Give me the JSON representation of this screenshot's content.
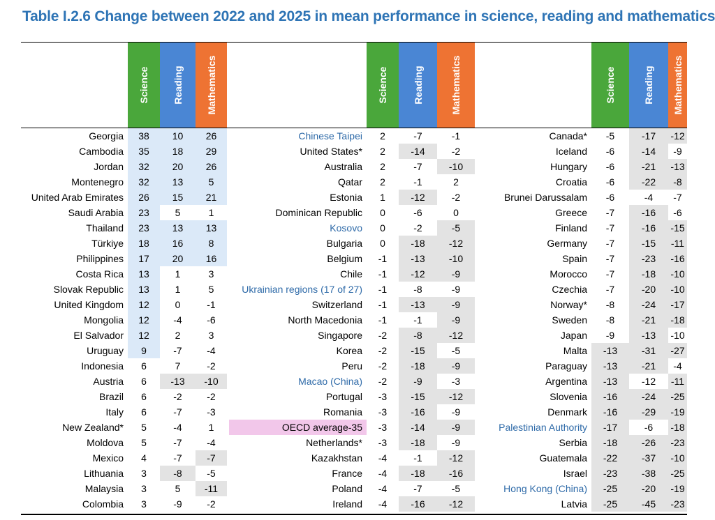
{
  "title": "Table I.2.6 Change between 2022 and 2025 in mean performance in science, reading and mathematics",
  "headers": {
    "science": "Science",
    "reading": "Reading",
    "mathematics": "Mathematics"
  },
  "colors": {
    "science": "#4aa73b",
    "reading": "#4a86d4",
    "mathematics": "#ee7333",
    "positive_shade": "#dbe9f8",
    "negative_shade": "#e3e3e3",
    "oecd_shade": "#f2c7ea",
    "partner_text": "#2e6aa8",
    "title": "#2e74b5"
  },
  "panels": [
    {
      "rows": [
        {
          "name": "Georgia",
          "science": "38",
          "reading": "10",
          "mathematics": "26",
          "shade": [
            "pos",
            "pos",
            "pos"
          ]
        },
        {
          "name": "Cambodia",
          "science": "35",
          "reading": "18",
          "mathematics": "29",
          "shade": [
            "pos",
            "pos",
            "pos"
          ]
        },
        {
          "name": "Jordan",
          "science": "32",
          "reading": "20",
          "mathematics": "26",
          "shade": [
            "pos",
            "pos",
            "pos"
          ]
        },
        {
          "name": "Montenegro",
          "science": "32",
          "reading": "13",
          "mathematics": "5",
          "shade": [
            "pos",
            "pos",
            "pos"
          ]
        },
        {
          "name": "United Arab Emirates",
          "science": "26",
          "reading": "15",
          "mathematics": "21",
          "shade": [
            "pos",
            "pos",
            "pos"
          ]
        },
        {
          "name": "Saudi Arabia",
          "science": "23",
          "reading": "5",
          "mathematics": "1",
          "shade": [
            "pos",
            "",
            ""
          ]
        },
        {
          "name": "Thailand",
          "science": "23",
          "reading": "13",
          "mathematics": "13",
          "shade": [
            "pos",
            "pos",
            "pos"
          ]
        },
        {
          "name": "Türkiye",
          "science": "18",
          "reading": "16",
          "mathematics": "8",
          "shade": [
            "pos",
            "pos",
            "pos"
          ]
        },
        {
          "name": "Philippines",
          "science": "17",
          "reading": "20",
          "mathematics": "16",
          "shade": [
            "pos",
            "pos",
            "pos"
          ]
        },
        {
          "name": "Costa Rica",
          "science": "13",
          "reading": "1",
          "mathematics": "3",
          "shade": [
            "pos",
            "",
            ""
          ]
        },
        {
          "name": "Slovak Republic",
          "science": "13",
          "reading": "1",
          "mathematics": "5",
          "shade": [
            "pos",
            "",
            ""
          ]
        },
        {
          "name": "United Kingdom",
          "science": "12",
          "reading": "0",
          "mathematics": "-1",
          "shade": [
            "pos",
            "",
            ""
          ]
        },
        {
          "name": "Mongolia",
          "science": "12",
          "reading": "-4",
          "mathematics": "-6",
          "shade": [
            "pos",
            "",
            ""
          ]
        },
        {
          "name": "El Salvador",
          "science": "12",
          "reading": "2",
          "mathematics": "3",
          "shade": [
            "pos",
            "",
            ""
          ]
        },
        {
          "name": "Uruguay",
          "science": "9",
          "reading": "-7",
          "mathematics": "-4",
          "shade": [
            "pos",
            "",
            ""
          ]
        },
        {
          "name": "Indonesia",
          "science": "6",
          "reading": "7",
          "mathematics": "-2",
          "shade": [
            "",
            "",
            ""
          ]
        },
        {
          "name": "Austria",
          "science": "6",
          "reading": "-13",
          "mathematics": "-10",
          "shade": [
            "",
            "neg",
            "neg"
          ]
        },
        {
          "name": "Brazil",
          "science": "6",
          "reading": "-2",
          "mathematics": "-2",
          "shade": [
            "",
            "",
            ""
          ]
        },
        {
          "name": "Italy",
          "science": "6",
          "reading": "-7",
          "mathematics": "-3",
          "shade": [
            "",
            "",
            ""
          ]
        },
        {
          "name": "New Zealand*",
          "science": "5",
          "reading": "-4",
          "mathematics": "1",
          "shade": [
            "",
            "",
            ""
          ]
        },
        {
          "name": "Moldova",
          "science": "5",
          "reading": "-7",
          "mathematics": "-4",
          "shade": [
            "",
            "",
            ""
          ]
        },
        {
          "name": "Mexico",
          "science": "4",
          "reading": "-7",
          "mathematics": "-7",
          "shade": [
            "",
            "",
            "neg"
          ]
        },
        {
          "name": "Lithuania",
          "science": "3",
          "reading": "-8",
          "mathematics": "-5",
          "shade": [
            "",
            "neg",
            ""
          ]
        },
        {
          "name": "Malaysia",
          "science": "3",
          "reading": "5",
          "mathematics": "-11",
          "shade": [
            "",
            "",
            "neg"
          ]
        },
        {
          "name": "Colombia",
          "science": "3",
          "reading": "-9",
          "mathematics": "-2",
          "shade": [
            "",
            "",
            ""
          ]
        }
      ]
    },
    {
      "rows": [
        {
          "name": "Chinese Taipei",
          "blue": true,
          "science": "2",
          "reading": "-7",
          "mathematics": "-1",
          "shade": [
            "",
            "",
            ""
          ]
        },
        {
          "name": "United States*",
          "science": "2",
          "reading": "-14",
          "mathematics": "-2",
          "shade": [
            "",
            "neg",
            ""
          ]
        },
        {
          "name": "Australia",
          "science": "2",
          "reading": "-7",
          "mathematics": "-10",
          "shade": [
            "",
            "",
            "neg"
          ]
        },
        {
          "name": "Qatar",
          "science": "2",
          "reading": "-1",
          "mathematics": "2",
          "shade": [
            "",
            "",
            ""
          ]
        },
        {
          "name": "Estonia",
          "science": "1",
          "reading": "-12",
          "mathematics": "-2",
          "shade": [
            "",
            "neg",
            ""
          ]
        },
        {
          "name": "Dominican Republic",
          "science": "0",
          "reading": "-6",
          "mathematics": "0",
          "shade": [
            "",
            "",
            ""
          ]
        },
        {
          "name": "Kosovo",
          "blue": true,
          "science": "0",
          "reading": "-2",
          "mathematics": "-5",
          "shade": [
            "",
            "",
            "neg"
          ]
        },
        {
          "name": "Bulgaria",
          "science": "0",
          "reading": "-18",
          "mathematics": "-12",
          "shade": [
            "",
            "neg",
            "neg"
          ]
        },
        {
          "name": "Belgium",
          "science": "-1",
          "reading": "-13",
          "mathematics": "-10",
          "shade": [
            "",
            "neg",
            "neg"
          ]
        },
        {
          "name": "Chile",
          "science": "-1",
          "reading": "-12",
          "mathematics": "-9",
          "shade": [
            "",
            "neg",
            "neg"
          ]
        },
        {
          "name": "Ukrainian regions (17 of 27)",
          "blue": true,
          "science": "-1",
          "reading": "-8",
          "mathematics": "-9",
          "shade": [
            "",
            "",
            ""
          ]
        },
        {
          "name": "Switzerland",
          "science": "-1",
          "reading": "-13",
          "mathematics": "-9",
          "shade": [
            "",
            "neg",
            "neg"
          ]
        },
        {
          "name": "North Macedonia",
          "science": "-1",
          "reading": "-1",
          "mathematics": "-9",
          "shade": [
            "",
            "",
            "neg"
          ]
        },
        {
          "name": "Singapore",
          "science": "-2",
          "reading": "-8",
          "mathematics": "-12",
          "shade": [
            "",
            "neg",
            "neg"
          ]
        },
        {
          "name": "Korea",
          "science": "-2",
          "reading": "-15",
          "mathematics": "-5",
          "shade": [
            "",
            "neg",
            ""
          ]
        },
        {
          "name": "Peru",
          "science": "-2",
          "reading": "-18",
          "mathematics": "-9",
          "shade": [
            "",
            "neg",
            "neg"
          ]
        },
        {
          "name": "Macao (China)",
          "blue": true,
          "science": "-2",
          "reading": "-9",
          "mathematics": "-3",
          "shade": [
            "",
            "neg",
            ""
          ]
        },
        {
          "name": "Portugal",
          "science": "-3",
          "reading": "-15",
          "mathematics": "-12",
          "shade": [
            "",
            "neg",
            "neg"
          ]
        },
        {
          "name": "Romania",
          "science": "-3",
          "reading": "-16",
          "mathematics": "-9",
          "shade": [
            "",
            "neg",
            ""
          ]
        },
        {
          "name": "OECD average-35",
          "oecd": true,
          "science": "-3",
          "reading": "-14",
          "mathematics": "-9",
          "shade": [
            "",
            "neg",
            "neg"
          ]
        },
        {
          "name": "Netherlands*",
          "science": "-3",
          "reading": "-18",
          "mathematics": "-9",
          "shade": [
            "",
            "neg",
            ""
          ]
        },
        {
          "name": "Kazakhstan",
          "science": "-4",
          "reading": "-1",
          "mathematics": "-12",
          "shade": [
            "",
            "",
            "neg"
          ]
        },
        {
          "name": "France",
          "science": "-4",
          "reading": "-18",
          "mathematics": "-16",
          "shade": [
            "",
            "neg",
            "neg"
          ]
        },
        {
          "name": "Poland",
          "science": "-4",
          "reading": "-7",
          "mathematics": "-5",
          "shade": [
            "",
            "",
            ""
          ]
        },
        {
          "name": "Ireland",
          "science": "-4",
          "reading": "-16",
          "mathematics": "-12",
          "shade": [
            "",
            "neg",
            "neg"
          ]
        }
      ]
    },
    {
      "rows": [
        {
          "name": "Canada*",
          "science": "-5",
          "reading": "-17",
          "mathematics": "-12",
          "shade": [
            "",
            "neg",
            "neg"
          ]
        },
        {
          "name": "Iceland",
          "science": "-6",
          "reading": "-14",
          "mathematics": "-9",
          "shade": [
            "",
            "neg",
            ""
          ]
        },
        {
          "name": "Hungary",
          "science": "-6",
          "reading": "-21",
          "mathematics": "-13",
          "shade": [
            "",
            "neg",
            "neg"
          ]
        },
        {
          "name": "Croatia",
          "science": "-6",
          "reading": "-22",
          "mathematics": "-8",
          "shade": [
            "",
            "neg",
            "neg"
          ]
        },
        {
          "name": "Brunei Darussalam",
          "science": "-6",
          "reading": "-4",
          "mathematics": "-7",
          "shade": [
            "",
            "",
            ""
          ]
        },
        {
          "name": "Greece",
          "science": "-7",
          "reading": "-16",
          "mathematics": "-6",
          "shade": [
            "",
            "neg",
            ""
          ]
        },
        {
          "name": "Finland",
          "science": "-7",
          "reading": "-16",
          "mathematics": "-15",
          "shade": [
            "",
            "neg",
            "neg"
          ]
        },
        {
          "name": "Germany",
          "science": "-7",
          "reading": "-15",
          "mathematics": "-11",
          "shade": [
            "",
            "neg",
            "neg"
          ]
        },
        {
          "name": "Spain",
          "science": "-7",
          "reading": "-23",
          "mathematics": "-16",
          "shade": [
            "",
            "neg",
            "neg"
          ]
        },
        {
          "name": "Morocco",
          "science": "-7",
          "reading": "-18",
          "mathematics": "-10",
          "shade": [
            "",
            "neg",
            "neg"
          ]
        },
        {
          "name": "Czechia",
          "science": "-7",
          "reading": "-20",
          "mathematics": "-10",
          "shade": [
            "",
            "neg",
            "neg"
          ]
        },
        {
          "name": "Norway*",
          "science": "-8",
          "reading": "-24",
          "mathematics": "-17",
          "shade": [
            "",
            "neg",
            "neg"
          ]
        },
        {
          "name": "Sweden",
          "science": "-8",
          "reading": "-21",
          "mathematics": "-18",
          "shade": [
            "",
            "neg",
            "neg"
          ]
        },
        {
          "name": "Japan",
          "science": "-9",
          "reading": "-13",
          "mathematics": "-10",
          "shade": [
            "",
            "neg",
            ""
          ]
        },
        {
          "name": "Malta",
          "science": "-13",
          "reading": "-31",
          "mathematics": "-27",
          "shade": [
            "neg",
            "neg",
            "neg"
          ]
        },
        {
          "name": "Paraguay",
          "science": "-13",
          "reading": "-21",
          "mathematics": "-4",
          "shade": [
            "neg",
            "neg",
            ""
          ]
        },
        {
          "name": "Argentina",
          "science": "-13",
          "reading": "-12",
          "mathematics": "-11",
          "shade": [
            "neg",
            "",
            "neg"
          ]
        },
        {
          "name": "Slovenia",
          "science": "-16",
          "reading": "-24",
          "mathematics": "-25",
          "shade": [
            "neg",
            "neg",
            "neg"
          ]
        },
        {
          "name": "Denmark",
          "science": "-16",
          "reading": "-29",
          "mathematics": "-19",
          "shade": [
            "neg",
            "neg",
            "neg"
          ]
        },
        {
          "name": "Palestinian Authority",
          "blue": true,
          "science": "-17",
          "reading": "-6",
          "mathematics": "-18",
          "shade": [
            "neg",
            "",
            "neg"
          ]
        },
        {
          "name": "Serbia",
          "science": "-18",
          "reading": "-26",
          "mathematics": "-23",
          "shade": [
            "neg",
            "neg",
            "neg"
          ]
        },
        {
          "name": "Guatemala",
          "science": "-22",
          "reading": "-37",
          "mathematics": "-10",
          "shade": [
            "neg",
            "neg",
            "neg"
          ]
        },
        {
          "name": "Israel",
          "science": "-23",
          "reading": "-38",
          "mathematics": "-25",
          "shade": [
            "neg",
            "neg",
            "neg"
          ]
        },
        {
          "name": "Hong Kong (China)",
          "blue": true,
          "science": "-25",
          "reading": "-20",
          "mathematics": "-19",
          "shade": [
            "neg",
            "neg",
            "neg"
          ]
        },
        {
          "name": "Latvia",
          "science": "-25",
          "reading": "-45",
          "mathematics": "-23",
          "shade": [
            "neg",
            "neg",
            "neg"
          ]
        }
      ]
    }
  ]
}
